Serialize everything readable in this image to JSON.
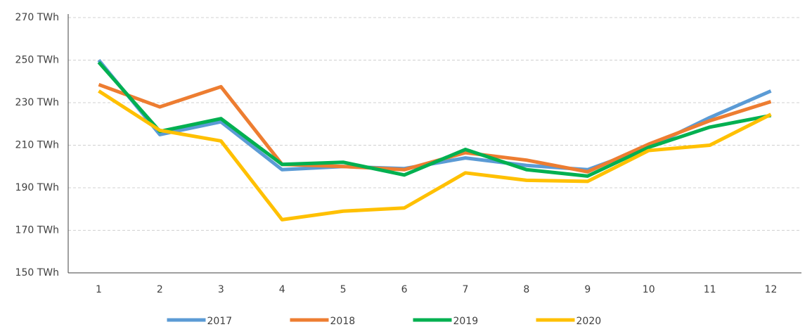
{
  "chart_data": {
    "type": "line",
    "categories": [
      "1",
      "2",
      "3",
      "4",
      "5",
      "6",
      "7",
      "8",
      "9",
      "10",
      "11",
      "12"
    ],
    "series": [
      {
        "name": "2017",
        "color": "#5b9bd5",
        "values": [
          250,
          215,
          221,
          198.5,
          200,
          199,
          204,
          200.5,
          198.5,
          209,
          223,
          235.5
        ]
      },
      {
        "name": "2018",
        "color": "#ed7d31",
        "values": [
          238.5,
          228,
          237.5,
          201,
          200,
          198.5,
          206.5,
          203,
          197.5,
          210.5,
          221.5,
          230.5
        ]
      },
      {
        "name": "2019",
        "color": "#00b050",
        "values": [
          249,
          216.5,
          222.5,
          201,
          202,
          196,
          208,
          198.5,
          195.5,
          209,
          218.5,
          224
        ]
      },
      {
        "name": "2020",
        "color": "#ffc000",
        "values": [
          235.5,
          217,
          212,
          175,
          179,
          180.5,
          197,
          193.5,
          193,
          207.5,
          210,
          224.5
        ]
      }
    ],
    "ylim": [
      150,
      270
    ],
    "yticks": [
      {
        "value": 150,
        "label": "150 TWh"
      },
      {
        "value": 170,
        "label": "170 TWh"
      },
      {
        "value": 190,
        "label": "190 TWh"
      },
      {
        "value": 210,
        "label": "210 TWh"
      },
      {
        "value": 230,
        "label": "230 TWh"
      },
      {
        "value": 250,
        "label": "250 TWh"
      },
      {
        "value": 270,
        "label": "270 TWh"
      }
    ],
    "grid": true,
    "legend": "bottom"
  }
}
